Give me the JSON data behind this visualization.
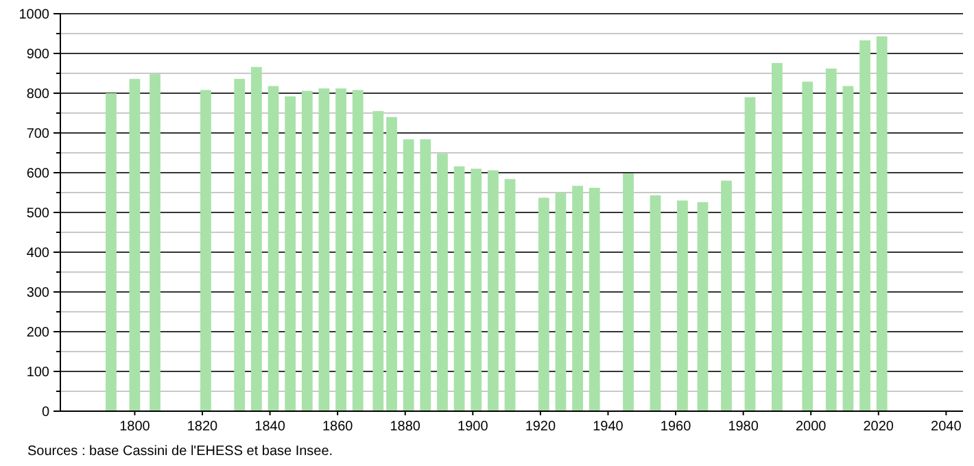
{
  "chart_data": {
    "type": "bar",
    "x": [
      1793,
      1800,
      1806,
      1821,
      1831,
      1836,
      1841,
      1846,
      1851,
      1856,
      1861,
      1866,
      1872,
      1876,
      1881,
      1886,
      1891,
      1896,
      1901,
      1906,
      1911,
      1921,
      1926,
      1931,
      1936,
      1946,
      1954,
      1962,
      1968,
      1975,
      1982,
      1990,
      1999,
      2006,
      2011,
      2016,
      2021
    ],
    "values": [
      800,
      836,
      848,
      808,
      836,
      866,
      818,
      792,
      806,
      812,
      812,
      808,
      755,
      740,
      684,
      684,
      648,
      616,
      610,
      606,
      584,
      537,
      549,
      567,
      562,
      598,
      543,
      530,
      526,
      580,
      790,
      876,
      829,
      862,
      818,
      933,
      943
    ],
    "color": "#a8e2a8",
    "xlim": [
      1778,
      2045
    ],
    "xticks": [
      1800,
      1820,
      1840,
      1860,
      1880,
      1900,
      1920,
      1940,
      1960,
      1980,
      2000,
      2020,
      2040
    ],
    "ylim": [
      0,
      1000
    ],
    "yticks": [
      0,
      {
        "value": 50,
        "label": null
      },
      100,
      {
        "value": 150,
        "label": null
      },
      200,
      {
        "value": 250,
        "label": null
      },
      300,
      {
        "value": 350,
        "label": null
      },
      400,
      {
        "value": 450,
        "label": null
      },
      500,
      {
        "value": 550,
        "label": null
      },
      600,
      {
        "value": 650,
        "label": null
      },
      700,
      {
        "value": 750,
        "label": null
      },
      800,
      {
        "value": 850,
        "label": null
      },
      900,
      {
        "value": 950,
        "label": null
      },
      1000
    ],
    "grid": "y",
    "annotations": [
      "Sources : base Cassini de l'EHESS et base Insee."
    ]
  }
}
